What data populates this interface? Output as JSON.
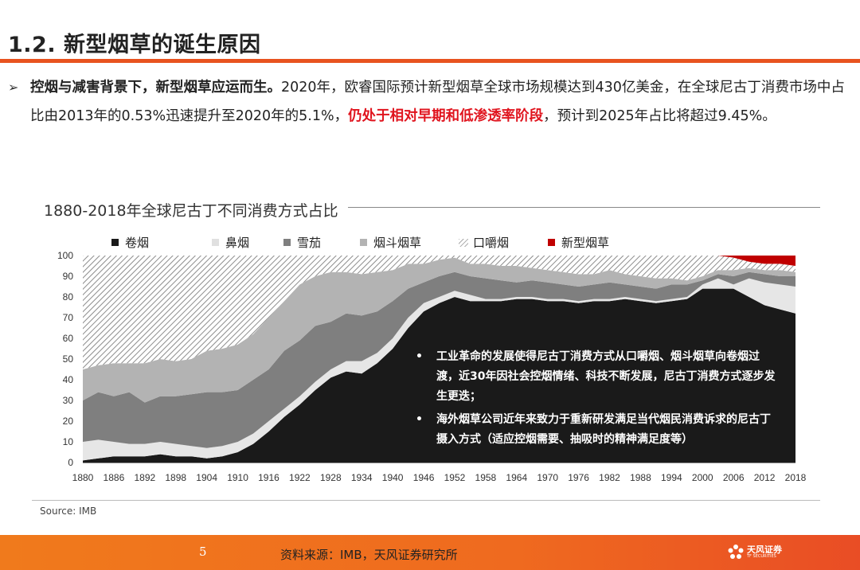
{
  "header": {
    "title": "1.2. 新型烟草的诞生原因"
  },
  "intro": {
    "bullet": "➢",
    "bold_lead": "控烟与减害背景下，新型烟草应运而生。",
    "text_1": "2020年，欧睿国际预计新型烟草全球市场规模达到430亿美金，在全球尼古丁消费市场中占比由2013年的0.53%迅速提升至2020年的5.1%，",
    "red_text": "仍处于相对早期和低渗透率阶段",
    "text_2": "，预计到2025年占比将超过9.45%。"
  },
  "chart_data": {
    "type": "area",
    "stacked": true,
    "title": "1880-2018年全球尼古丁不同消费方式占比",
    "xlabel": "",
    "ylabel": "",
    "ylim": [
      0,
      100
    ],
    "yticks": [
      0,
      10,
      20,
      30,
      40,
      50,
      60,
      70,
      80,
      90,
      100
    ],
    "xticks": [
      "1880",
      "1886",
      "1892",
      "1898",
      "1904",
      "1910",
      "1916",
      "1922",
      "1928",
      "1934",
      "1940",
      "1946",
      "1952",
      "1958",
      "1964",
      "1970",
      "1976",
      "1982",
      "1988",
      "1994",
      "2000",
      "2006",
      "2012",
      "2018"
    ],
    "grid": false,
    "legend_position": "top",
    "x": [
      1880,
      1883,
      1886,
      1889,
      1892,
      1895,
      1898,
      1901,
      1904,
      1907,
      1910,
      1913,
      1916,
      1919,
      1922,
      1925,
      1928,
      1931,
      1934,
      1937,
      1940,
      1943,
      1946,
      1949,
      1952,
      1955,
      1958,
      1961,
      1964,
      1967,
      1970,
      1973,
      1976,
      1979,
      1982,
      1985,
      1988,
      1991,
      1994,
      1997,
      2000,
      2003,
      2006,
      2009,
      2012,
      2015,
      2018
    ],
    "series": [
      {
        "name": "卷烟",
        "color": "#1a1a1a",
        "values": [
          1,
          2,
          3,
          3,
          3,
          4,
          3,
          3,
          2,
          3,
          5,
          9,
          15,
          22,
          28,
          35,
          41,
          44,
          43,
          48,
          55,
          65,
          73,
          77,
          80,
          78,
          78,
          78,
          79,
          79,
          78,
          78,
          77,
          78,
          78,
          79,
          78,
          77,
          78,
          79,
          84,
          84,
          84,
          80,
          76,
          74,
          72
        ]
      },
      {
        "name": "鼻烟",
        "color": "#e6e6e6",
        "values": [
          9,
          9,
          7,
          6,
          6,
          6,
          6,
          5,
          5,
          5,
          5,
          5,
          5,
          4,
          4,
          4,
          4,
          5,
          6,
          5,
          5,
          5,
          4,
          3,
          3,
          3,
          1,
          1,
          1,
          1,
          1,
          1,
          1,
          1,
          1,
          1,
          1,
          1,
          1,
          1,
          2,
          5,
          2,
          9,
          11,
          12,
          13
        ]
      },
      {
        "name": "雪茄",
        "color": "#7f7f7f",
        "values": [
          20,
          23,
          22,
          25,
          20,
          22,
          23,
          25,
          27,
          26,
          25,
          26,
          25,
          28,
          27,
          27,
          23,
          23,
          22,
          20,
          18,
          14,
          10,
          10,
          9,
          9,
          10,
          9,
          7,
          8,
          8,
          7,
          7,
          7,
          8,
          6,
          6,
          6,
          7,
          6,
          2,
          2,
          4,
          3,
          4,
          4,
          5
        ]
      },
      {
        "name": "烟斗烟草",
        "color": "#b3b3b3",
        "values": [
          15,
          13,
          16,
          14,
          19,
          18,
          17,
          17,
          20,
          21,
          22,
          22,
          25,
          24,
          27,
          24,
          24,
          20,
          20,
          19,
          15,
          12,
          9,
          8,
          7,
          6,
          7,
          7,
          8,
          6,
          6,
          6,
          6,
          5,
          6,
          5,
          5,
          5,
          3,
          2,
          2,
          2,
          3,
          2,
          2,
          3,
          2
        ]
      },
      {
        "name": "口嚼烟",
        "color": "#ffffff",
        "values": [
          55,
          53,
          52,
          52,
          52,
          50,
          51,
          50,
          46,
          45,
          43,
          38,
          30,
          22,
          14,
          10,
          8,
          8,
          9,
          8,
          7,
          4,
          4,
          2,
          1,
          4,
          4,
          5,
          5,
          6,
          7,
          8,
          9,
          9,
          7,
          9,
          10,
          11,
          11,
          12,
          10,
          7,
          6,
          3,
          3,
          3,
          3
        ]
      },
      {
        "name": "新型烟草",
        "color": "#c00000",
        "values": [
          0,
          0,
          0,
          0,
          0,
          0,
          0,
          0,
          0,
          0,
          0,
          0,
          0,
          0,
          0,
          0,
          0,
          0,
          0,
          0,
          0,
          0,
          0,
          0,
          0,
          0,
          0,
          0,
          0,
          0,
          0,
          0,
          0,
          0,
          0,
          0,
          0,
          0,
          0,
          0,
          0,
          0,
          1,
          3,
          4,
          4,
          5
        ]
      }
    ]
  },
  "chart_text": {
    "annotations": [
      "工业革命的发展使得尼古丁消费方式从口嚼烟、烟斗烟草向卷烟过渡，近30年因社会控烟情绪、科技不断发展，尼古丁消费方式逐步发生更迭；",
      "海外烟草公司近年来致力于重新研发满足当代烟民消费诉求的尼古丁摄入方式（适应控烟需要、抽吸时的精神满足度等）"
    ],
    "annotation_bullet": "•",
    "source": "Source:  IMB"
  },
  "footer": {
    "page_number": "5",
    "source": "资料来源：IMB，天风证券研究所",
    "logo_text": "天风证券",
    "logo_subtext": "TF SECURITIES"
  }
}
